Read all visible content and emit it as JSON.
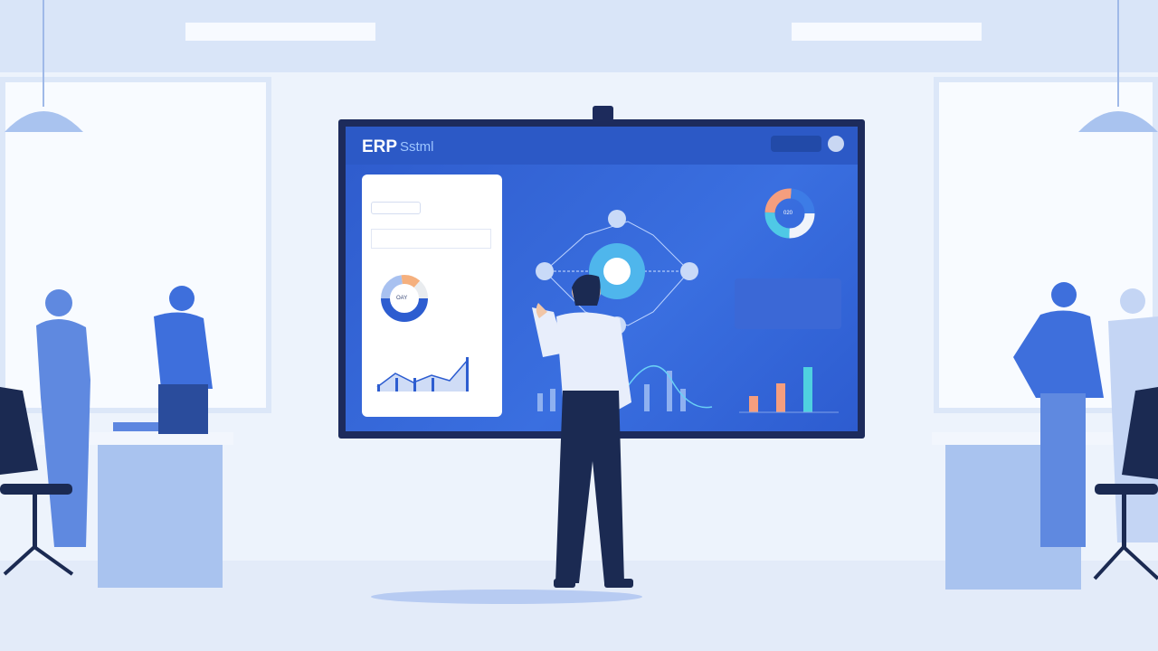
{
  "screen": {
    "title": "ERP",
    "subtitle": "Sstml",
    "left_donut_center": "OAY",
    "right_donut_center": "020"
  },
  "colors": {
    "screen_blue": "#2e5bcc",
    "bezel": "#1d2b5c",
    "accent_cyan": "#4fc9e6",
    "accent_orange": "#f59e7e",
    "person_blue": "#3e6fdc",
    "navy": "#1b2a52"
  }
}
